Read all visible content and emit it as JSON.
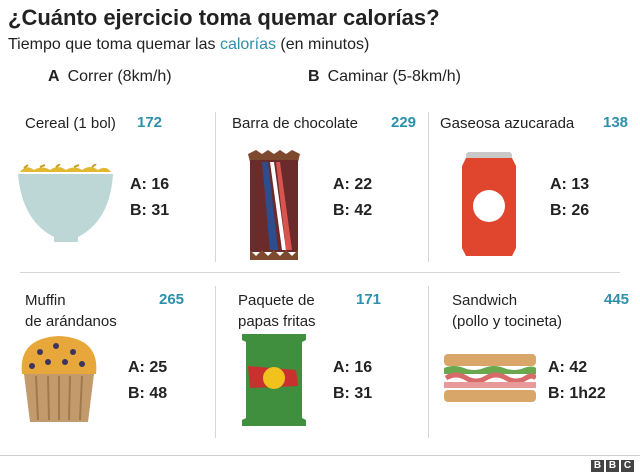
{
  "header": {
    "title": "¿Cuánto ejercicio toma quemar calorías?",
    "subtitle_pre": "Tiempo que toma quemar las ",
    "subtitle_accent": "calorías",
    "subtitle_post": " (en minutos)"
  },
  "legend": {
    "a_key": "A",
    "a_label": "Correr (8km/h)",
    "b_key": "B",
    "b_label": "Caminar (5-8km/h)"
  },
  "colors": {
    "accent": "#2e8fab",
    "text": "#222222",
    "divider": "#d6d6d6"
  },
  "items": [
    {
      "name_line1": "Cereal (1 bol)",
      "name_line2": "",
      "calories": "172",
      "a": "A: 16",
      "b": "B: 31",
      "icon": "cereal-bowl-icon"
    },
    {
      "name_line1": "Barra de chocolate",
      "name_line2": "",
      "calories": "229",
      "a": "A: 22",
      "b": "B: 42",
      "icon": "chocolate-bar-icon"
    },
    {
      "name_line1": "Gaseosa azucarada",
      "name_line2": "",
      "calories": "138",
      "a": "A: 13",
      "b": "B: 26",
      "icon": "soda-can-icon"
    },
    {
      "name_line1": "Muffin",
      "name_line2": "de arándanos",
      "calories": "265",
      "a": "A: 25",
      "b": "B: 48",
      "icon": "blueberry-muffin-icon"
    },
    {
      "name_line1": "Paquete de",
      "name_line2": "papas fritas",
      "calories": "171",
      "a": "A: 16",
      "b": "B: 31",
      "icon": "chips-bag-icon"
    },
    {
      "name_line1": "Sandwich",
      "name_line2": "(pollo y tocineta)",
      "calories": "445",
      "a": "A: 42",
      "b": "B: 1h22",
      "icon": "sandwich-icon"
    }
  ],
  "footer": {
    "logo_letters": [
      "B",
      "B",
      "C"
    ]
  }
}
